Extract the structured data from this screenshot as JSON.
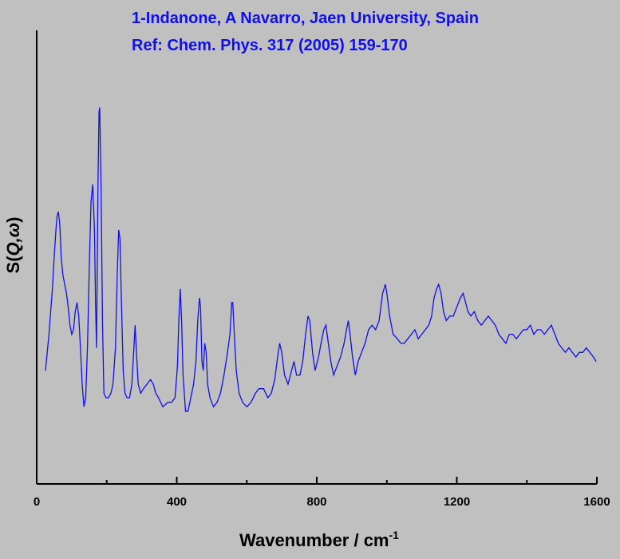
{
  "chart_data": {
    "type": "line",
    "title_lines": [
      "1-Indanone, A Navarro, Jaen University, Spain",
      "Ref: Chem. Phys. 317 (2005) 159-170"
    ],
    "xlabel_main": "Wavenumber / cm",
    "xlabel_sup": "-1",
    "ylabel_main": "S(",
    "ylabel_italic": "Q,ω",
    "ylabel_close": ")",
    "xlim": [
      0,
      1600
    ],
    "ylim": [
      0,
      1
    ],
    "xticks": [
      0,
      400,
      800,
      1200,
      1600
    ],
    "y_ticks_labeled": false,
    "grid": false,
    "line_color": "#1010e8",
    "series": [
      {
        "points": [
          [
            25,
            0.25
          ],
          [
            30,
            0.29
          ],
          [
            35,
            0.33
          ],
          [
            40,
            0.38
          ],
          [
            45,
            0.43
          ],
          [
            50,
            0.5
          ],
          [
            55,
            0.56
          ],
          [
            58,
            0.59
          ],
          [
            62,
            0.6
          ],
          [
            66,
            0.57
          ],
          [
            70,
            0.5
          ],
          [
            75,
            0.46
          ],
          [
            80,
            0.44
          ],
          [
            85,
            0.42
          ],
          [
            90,
            0.39
          ],
          [
            95,
            0.35
          ],
          [
            100,
            0.33
          ],
          [
            105,
            0.34
          ],
          [
            110,
            0.38
          ],
          [
            115,
            0.4
          ],
          [
            120,
            0.37
          ],
          [
            125,
            0.3
          ],
          [
            130,
            0.22
          ],
          [
            135,
            0.17
          ],
          [
            140,
            0.19
          ],
          [
            145,
            0.3
          ],
          [
            150,
            0.47
          ],
          [
            155,
            0.62
          ],
          [
            160,
            0.66
          ],
          [
            165,
            0.56
          ],
          [
            168,
            0.4
          ],
          [
            171,
            0.3
          ],
          [
            175,
            0.66
          ],
          [
            178,
            0.82
          ],
          [
            180,
            0.83
          ],
          [
            184,
            0.65
          ],
          [
            188,
            0.35
          ],
          [
            192,
            0.2
          ],
          [
            198,
            0.19
          ],
          [
            205,
            0.19
          ],
          [
            212,
            0.2
          ],
          [
            218,
            0.22
          ],
          [
            225,
            0.3
          ],
          [
            230,
            0.46
          ],
          [
            234,
            0.56
          ],
          [
            238,
            0.54
          ],
          [
            242,
            0.4
          ],
          [
            247,
            0.25
          ],
          [
            252,
            0.2
          ],
          [
            258,
            0.19
          ],
          [
            265,
            0.19
          ],
          [
            272,
            0.22
          ],
          [
            277,
            0.29
          ],
          [
            281,
            0.35
          ],
          [
            285,
            0.29
          ],
          [
            290,
            0.22
          ],
          [
            297,
            0.2
          ],
          [
            305,
            0.21
          ],
          [
            315,
            0.22
          ],
          [
            325,
            0.23
          ],
          [
            333,
            0.22
          ],
          [
            340,
            0.2
          ],
          [
            348,
            0.19
          ],
          [
            360,
            0.17
          ],
          [
            375,
            0.18
          ],
          [
            385,
            0.18
          ],
          [
            395,
            0.19
          ],
          [
            402,
            0.26
          ],
          [
            406,
            0.36
          ],
          [
            410,
            0.43
          ],
          [
            414,
            0.36
          ],
          [
            418,
            0.24
          ],
          [
            425,
            0.16
          ],
          [
            432,
            0.16
          ],
          [
            440,
            0.19
          ],
          [
            448,
            0.22
          ],
          [
            455,
            0.27
          ],
          [
            460,
            0.36
          ],
          [
            465,
            0.41
          ],
          [
            468,
            0.39
          ],
          [
            472,
            0.27
          ],
          [
            476,
            0.25
          ],
          [
            480,
            0.31
          ],
          [
            484,
            0.29
          ],
          [
            488,
            0.22
          ],
          [
            495,
            0.19
          ],
          [
            505,
            0.17
          ],
          [
            515,
            0.18
          ],
          [
            525,
            0.2
          ],
          [
            535,
            0.24
          ],
          [
            545,
            0.29
          ],
          [
            552,
            0.33
          ],
          [
            557,
            0.4
          ],
          [
            560,
            0.4
          ],
          [
            565,
            0.32
          ],
          [
            570,
            0.25
          ],
          [
            578,
            0.2
          ],
          [
            588,
            0.18
          ],
          [
            600,
            0.17
          ],
          [
            612,
            0.18
          ],
          [
            625,
            0.2
          ],
          [
            635,
            0.21
          ],
          [
            648,
            0.21
          ],
          [
            660,
            0.19
          ],
          [
            670,
            0.2
          ],
          [
            680,
            0.23
          ],
          [
            688,
            0.28
          ],
          [
            694,
            0.31
          ],
          [
            700,
            0.29
          ],
          [
            708,
            0.24
          ],
          [
            718,
            0.22
          ],
          [
            728,
            0.25
          ],
          [
            735,
            0.27
          ],
          [
            742,
            0.24
          ],
          [
            752,
            0.24
          ],
          [
            760,
            0.27
          ],
          [
            768,
            0.33
          ],
          [
            775,
            0.37
          ],
          [
            780,
            0.36
          ],
          [
            788,
            0.29
          ],
          [
            795,
            0.25
          ],
          [
            805,
            0.28
          ],
          [
            812,
            0.31
          ],
          [
            820,
            0.34
          ],
          [
            826,
            0.35
          ],
          [
            833,
            0.31
          ],
          [
            840,
            0.27
          ],
          [
            848,
            0.24
          ],
          [
            858,
            0.26
          ],
          [
            868,
            0.28
          ],
          [
            878,
            0.31
          ],
          [
            885,
            0.34
          ],
          [
            890,
            0.36
          ],
          [
            895,
            0.33
          ],
          [
            902,
            0.28
          ],
          [
            910,
            0.24
          ],
          [
            918,
            0.27
          ],
          [
            928,
            0.29
          ],
          [
            938,
            0.31
          ],
          [
            948,
            0.34
          ],
          [
            958,
            0.35
          ],
          [
            968,
            0.34
          ],
          [
            978,
            0.36
          ],
          [
            988,
            0.42
          ],
          [
            996,
            0.44
          ],
          [
            1000,
            0.42
          ],
          [
            1008,
            0.37
          ],
          [
            1018,
            0.33
          ],
          [
            1030,
            0.32
          ],
          [
            1040,
            0.31
          ],
          [
            1050,
            0.31
          ],
          [
            1060,
            0.32
          ],
          [
            1070,
            0.33
          ],
          [
            1080,
            0.34
          ],
          [
            1090,
            0.32
          ],
          [
            1100,
            0.33
          ],
          [
            1110,
            0.34
          ],
          [
            1120,
            0.35
          ],
          [
            1128,
            0.37
          ],
          [
            1135,
            0.41
          ],
          [
            1142,
            0.43
          ],
          [
            1148,
            0.44
          ],
          [
            1155,
            0.42
          ],
          [
            1162,
            0.38
          ],
          [
            1170,
            0.36
          ],
          [
            1180,
            0.37
          ],
          [
            1190,
            0.37
          ],
          [
            1200,
            0.39
          ],
          [
            1210,
            0.41
          ],
          [
            1218,
            0.42
          ],
          [
            1225,
            0.4
          ],
          [
            1232,
            0.38
          ],
          [
            1240,
            0.37
          ],
          [
            1250,
            0.38
          ],
          [
            1260,
            0.36
          ],
          [
            1270,
            0.35
          ],
          [
            1280,
            0.36
          ],
          [
            1290,
            0.37
          ],
          [
            1300,
            0.36
          ],
          [
            1310,
            0.35
          ],
          [
            1320,
            0.33
          ],
          [
            1330,
            0.32
          ],
          [
            1340,
            0.31
          ],
          [
            1350,
            0.33
          ],
          [
            1360,
            0.33
          ],
          [
            1370,
            0.32
          ],
          [
            1380,
            0.33
          ],
          [
            1390,
            0.34
          ],
          [
            1400,
            0.34
          ],
          [
            1410,
            0.35
          ],
          [
            1420,
            0.33
          ],
          [
            1430,
            0.34
          ],
          [
            1440,
            0.34
          ],
          [
            1450,
            0.33
          ],
          [
            1460,
            0.34
          ],
          [
            1470,
            0.35
          ],
          [
            1480,
            0.33
          ],
          [
            1490,
            0.31
          ],
          [
            1500,
            0.3
          ],
          [
            1510,
            0.29
          ],
          [
            1520,
            0.3
          ],
          [
            1530,
            0.29
          ],
          [
            1540,
            0.28
          ],
          [
            1550,
            0.29
          ],
          [
            1560,
            0.29
          ],
          [
            1570,
            0.3
          ],
          [
            1580,
            0.29
          ],
          [
            1590,
            0.28
          ],
          [
            1598,
            0.27
          ]
        ]
      }
    ]
  }
}
